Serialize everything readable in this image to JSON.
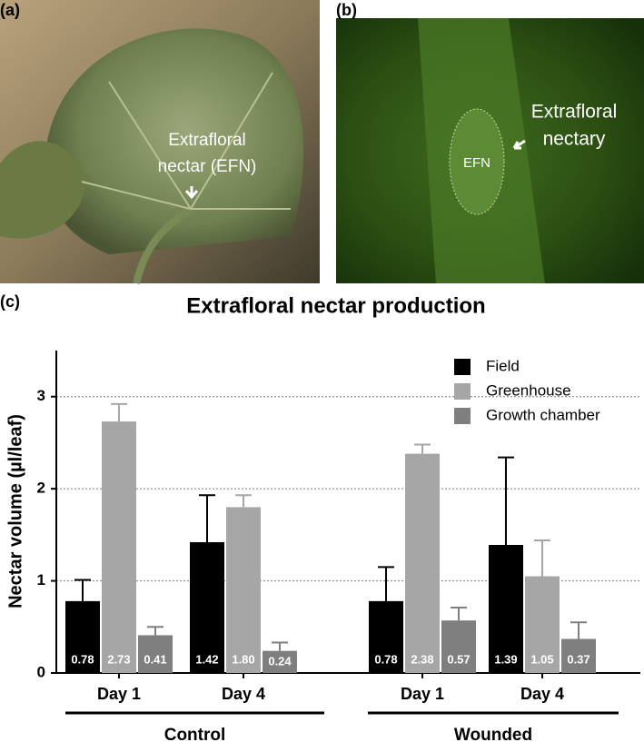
{
  "panels": {
    "a": {
      "label": "(a)",
      "annotation": [
        "Extrafloral",
        "nectar (EFN)"
      ]
    },
    "b": {
      "label": "(b)",
      "inset": "EFN",
      "annotation": [
        "Extrafloral",
        "nectary"
      ]
    },
    "c": {
      "label": "(c)"
    }
  },
  "chart_data": {
    "type": "bar",
    "title": "Extrafloral nectar production",
    "y_label": "Nectar volume (µl/leaf)",
    "categories": [
      "Day 1",
      "Day 4",
      "Day 1",
      "Day 4"
    ],
    "groups": [
      "Control",
      "Wounded"
    ],
    "ylim": [
      0,
      3.5
    ],
    "yticks": [
      0,
      1,
      2,
      3
    ],
    "grid": true,
    "legend": "top-right",
    "series": [
      {
        "name": "Field",
        "color": "#000000",
        "values": [
          0.78,
          1.42,
          0.78,
          1.39
        ],
        "value_labels": [
          "0.78",
          "1.42",
          "0.78",
          "1.39"
        ],
        "errors": [
          0.23,
          0.51,
          0.37,
          0.95
        ]
      },
      {
        "name": "Greenhouse",
        "color": "#a6a6a6",
        "values": [
          2.73,
          1.8,
          2.38,
          1.05
        ],
        "value_labels": [
          "2.73",
          "1.80",
          "2.38",
          "1.05"
        ],
        "errors": [
          0.19,
          0.13,
          0.1,
          0.39
        ]
      },
      {
        "name": "Growth chamber",
        "color": "#7f7f7f",
        "values": [
          0.41,
          0.24,
          0.57,
          0.37
        ],
        "value_labels": [
          "0.41",
          "0.24",
          "0.57",
          "0.37"
        ],
        "errors": [
          0.09,
          0.09,
          0.14,
          0.18
        ]
      }
    ]
  }
}
